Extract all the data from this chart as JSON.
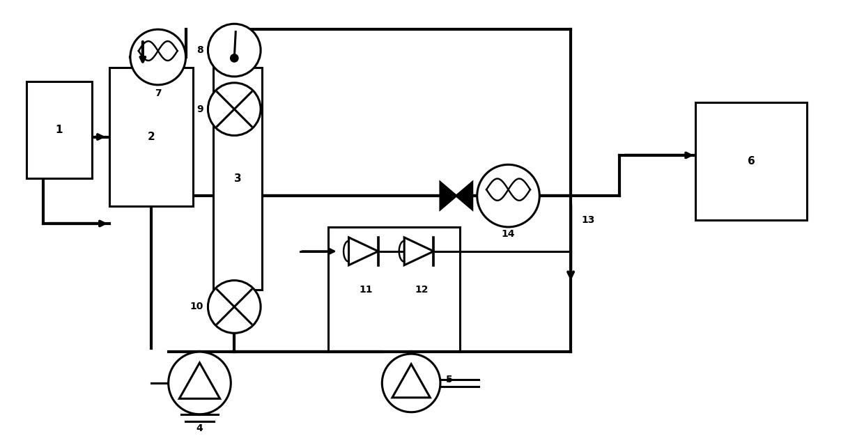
{
  "bg_color": "#ffffff",
  "lc": "#000000",
  "lw": 2.2,
  "tlw": 3.0,
  "fig_w": 12.4,
  "fig_h": 6.26,
  "xlim": [
    0,
    124
  ],
  "ylim": [
    0,
    62.6
  ]
}
